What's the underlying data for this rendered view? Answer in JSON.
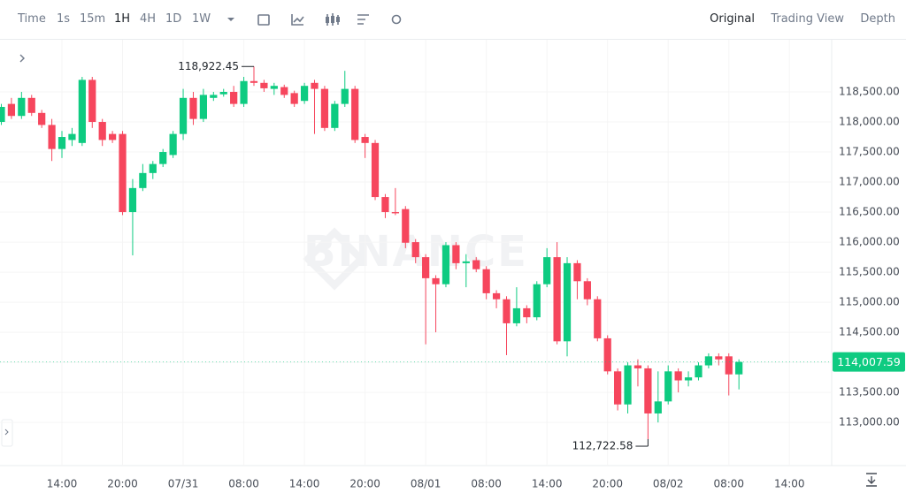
{
  "toolbar": {
    "intervals": [
      "Time",
      "1s",
      "15m",
      "1H",
      "4H",
      "1D",
      "1W"
    ],
    "active_interval": 3,
    "views": [
      "Original",
      "Trading View",
      "Depth"
    ],
    "active_view": 0
  },
  "chart_data": {
    "type": "candlestick",
    "watermark": "BINANCE",
    "up_color": "#0ecb81",
    "down_color": "#f6465d",
    "grid": true,
    "x": [
      0,
      1,
      2,
      3,
      4,
      5,
      6,
      7,
      8,
      9,
      10,
      11,
      12,
      13,
      14,
      15,
      16,
      17,
      18,
      19,
      20,
      21,
      22,
      23,
      24,
      25,
      26,
      27,
      28,
      29,
      30,
      31,
      32,
      33,
      34,
      35,
      36,
      37,
      38,
      39,
      40,
      41,
      42,
      43,
      44,
      45,
      46,
      47,
      48,
      49,
      50,
      51,
      52,
      53,
      54,
      55,
      56,
      57,
      58,
      59,
      60,
      61,
      62,
      63,
      64,
      65,
      66,
      67,
      68,
      69,
      70,
      71,
      72,
      73
    ],
    "open": [
      118000,
      118300,
      118100,
      118400,
      118150,
      117950,
      117550,
      117700,
      117650,
      118700,
      118000,
      117800,
      117800,
      116500,
      116900,
      117150,
      117300,
      117450,
      117800,
      118400,
      118050,
      118400,
      118460,
      118500,
      118300,
      118680,
      118650,
      118550,
      118580,
      118480,
      118350,
      118650,
      118550,
      117900,
      118300,
      118550,
      117750,
      117650,
      116750,
      116500,
      116550,
      116000,
      115750,
      115400,
      115300,
      115950,
      115650,
      115700,
      115550,
      115150,
      115050,
      114650,
      114900,
      114750,
      115300,
      115750,
      114350,
      115650,
      115350,
      115050,
      114400,
      113850,
      113300,
      113950,
      113900,
      113150,
      113350,
      113850,
      113700,
      113750,
      113950,
      114100,
      114100,
      113800
    ],
    "high": [
      118300,
      118400,
      118500,
      118450,
      118200,
      118050,
      117850,
      117900,
      118750,
      118750,
      118050,
      117850,
      117850,
      117050,
      117300,
      117350,
      117550,
      117850,
      118550,
      118500,
      118550,
      118500,
      118550,
      118600,
      118750,
      118922.45,
      118700,
      118650,
      118620,
      118520,
      118650,
      118700,
      118600,
      118350,
      118850,
      118600,
      117800,
      117700,
      116800,
      116900,
      116600,
      116050,
      115800,
      115450,
      116000,
      116000,
      115800,
      115750,
      115600,
      115200,
      115100,
      115250,
      114950,
      115350,
      115900,
      116000,
      115750,
      115700,
      115400,
      115100,
      114450,
      113900,
      114000,
      114050,
      113950,
      113850,
      113950,
      113900,
      113850,
      114000,
      114150,
      114150,
      114150,
      114050
    ],
    "low": [
      117950,
      118050,
      118050,
      118100,
      117900,
      117350,
      117400,
      117600,
      117600,
      117900,
      117600,
      117650,
      116450,
      115780,
      116850,
      117050,
      117250,
      117400,
      117700,
      117950,
      118000,
      118350,
      118420,
      118250,
      118250,
      118600,
      118500,
      118450,
      118400,
      118250,
      118300,
      117800,
      117850,
      117850,
      118250,
      117650,
      117400,
      116700,
      116400,
      116450,
      115900,
      115650,
      114300,
      114500,
      115250,
      115550,
      115250,
      115500,
      115050,
      114900,
      114120,
      114600,
      114650,
      114700,
      115250,
      114300,
      114100,
      115050,
      114950,
      114350,
      113800,
      113200,
      113150,
      113600,
      112722.58,
      113000,
      113300,
      113500,
      113600,
      113700,
      113900,
      113950,
      113450,
      113550
    ],
    "close": [
      118250,
      118100,
      118400,
      118150,
      117950,
      117550,
      117750,
      117800,
      118700,
      118000,
      117700,
      117700,
      116500,
      116900,
      117150,
      117300,
      117500,
      117800,
      118400,
      118050,
      118450,
      118450,
      118500,
      118300,
      118680,
      118650,
      118560,
      118600,
      118450,
      118300,
      118600,
      118550,
      117900,
      118300,
      118550,
      117700,
      117650,
      116750,
      116500,
      116480,
      115990,
      115750,
      115400,
      115300,
      115950,
      115650,
      115680,
      115550,
      115150,
      115050,
      114650,
      114900,
      114750,
      115300,
      115750,
      114350,
      115650,
      115350,
      115050,
      114400,
      113850,
      113300,
      113950,
      113900,
      113150,
      113350,
      113850,
      113700,
      113750,
      113950,
      114100,
      114050,
      113800,
      114007.59
    ],
    "annotations": [
      {
        "x": 25,
        "value": 118922.45,
        "label": "118,922.45"
      },
      {
        "x": 64,
        "value": 112722.58,
        "label": "112,722.58"
      }
    ],
    "last_price": {
      "value": 114007.59,
      "label": "114,007.59"
    },
    "xlim": [
      -0.13,
      82.18
    ],
    "xticks": [
      {
        "value": 6,
        "label": "14:00"
      },
      {
        "value": 12,
        "label": "20:00"
      },
      {
        "value": 18,
        "label": "07/31"
      },
      {
        "value": 24,
        "label": "08:00"
      },
      {
        "value": 30,
        "label": "14:00"
      },
      {
        "value": 36,
        "label": "20:00"
      },
      {
        "value": 42,
        "label": "08/01"
      },
      {
        "value": 48,
        "label": "08:00"
      },
      {
        "value": 54,
        "label": "14:00"
      },
      {
        "value": 60,
        "label": "20:00"
      },
      {
        "value": 66,
        "label": "08/02"
      },
      {
        "value": 72,
        "label": "08:00"
      },
      {
        "value": 78,
        "label": "14:00"
      }
    ],
    "ylim": [
      112282,
      119338
    ],
    "yticks": [
      {
        "value": 113000,
        "label": "113,000.00"
      },
      {
        "value": 113500,
        "label": "113,500.00"
      },
      {
        "value": 114000,
        "label": "114,000.00"
      },
      {
        "value": 114500,
        "label": "114,500.00"
      },
      {
        "value": 115000,
        "label": "115,000.00"
      },
      {
        "value": 115500,
        "label": "115,500.00"
      },
      {
        "value": 116000,
        "label": "116,000.00"
      },
      {
        "value": 116500,
        "label": "116,500.00"
      },
      {
        "value": 117000,
        "label": "117,000.00"
      },
      {
        "value": 117500,
        "label": "117,500.00"
      },
      {
        "value": 118000,
        "label": "118,000.00"
      },
      {
        "value": 118500,
        "label": "118,500.00"
      }
    ]
  }
}
